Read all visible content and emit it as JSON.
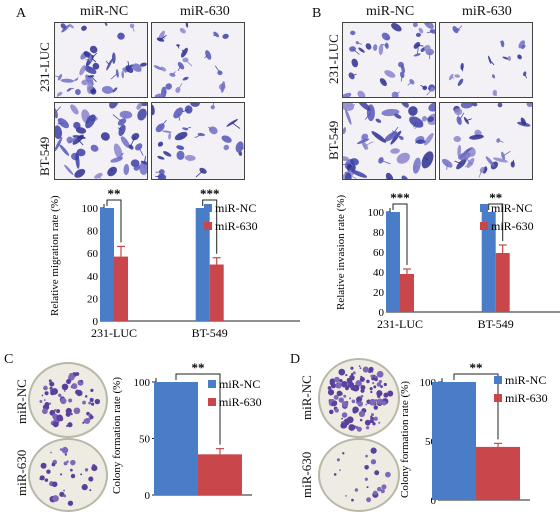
{
  "panels": {
    "A": {
      "letter": "A",
      "col1": "miR-NC",
      "col2": "miR-630",
      "row1": "231-LUC",
      "row2": "BT-549"
    },
    "B": {
      "letter": "B",
      "col1": "miR-NC",
      "col2": "miR-630",
      "row1": "231-LUC",
      "row2": "BT-549"
    },
    "C": {
      "letter": "C",
      "row1": "miR-NC",
      "row2": "miR-630"
    },
    "D": {
      "letter": "D",
      "row1": "miR-NC",
      "row2": "miR-630"
    }
  },
  "colors": {
    "nc": "#4a7dc8",
    "m630": "#c9474a"
  },
  "chart_data": [
    {
      "panel": "A",
      "type": "bar",
      "categories": [
        "231-LUC",
        "BT-549"
      ],
      "series": [
        {
          "name": "miR-NC",
          "values": [
            100,
            100
          ],
          "errors": [
            0,
            0
          ]
        },
        {
          "name": "miR-630",
          "values": [
            57,
            50
          ],
          "errors": [
            9,
            6
          ]
        }
      ],
      "ylabel": "Relative  migration  rate (%)",
      "ylim": [
        0,
        100
      ],
      "yticks": [
        "0",
        "20",
        "40",
        "60",
        "80",
        "100"
      ],
      "significance": [
        "**",
        "***"
      ],
      "legend": "right"
    },
    {
      "panel": "B",
      "type": "bar",
      "categories": [
        "231-LUC",
        "BT-549"
      ],
      "series": [
        {
          "name": "miR-NC",
          "values": [
            100,
            100
          ],
          "errors": [
            0,
            0
          ]
        },
        {
          "name": "miR-630",
          "values": [
            38,
            59
          ],
          "errors": [
            5,
            8
          ]
        }
      ],
      "ylabel": "Relative  invasion  rate (%)",
      "ylim": [
        0,
        100
      ],
      "yticks": [
        "0",
        "20",
        "40",
        "60",
        "80",
        "100"
      ],
      "significance": [
        "***",
        "**"
      ],
      "legend": "right"
    },
    {
      "panel": "C",
      "type": "bar",
      "categories": [
        ""
      ],
      "series": [
        {
          "name": "miR-NC",
          "values": [
            100
          ],
          "errors": [
            0
          ]
        },
        {
          "name": "miR-630",
          "values": [
            36
          ],
          "errors": [
            5
          ]
        }
      ],
      "ylabel": "Colony  formation  rate (%)",
      "ylim": [
        0,
        100
      ],
      "yticks": [
        "0",
        "50",
        "100"
      ],
      "significance": [
        "**"
      ],
      "legend": "right"
    },
    {
      "panel": "D",
      "type": "bar",
      "categories": [
        ""
      ],
      "series": [
        {
          "name": "miR-NC",
          "values": [
            100
          ],
          "errors": [
            0
          ]
        },
        {
          "name": "miR-630",
          "values": [
            45
          ],
          "errors": [
            3
          ]
        }
      ],
      "ylabel": "Colony  formation  rate (%)",
      "ylim": [
        0,
        100
      ],
      "yticks": [
        "0",
        "50",
        "100"
      ],
      "significance": [
        "**"
      ],
      "legend": "right"
    }
  ]
}
